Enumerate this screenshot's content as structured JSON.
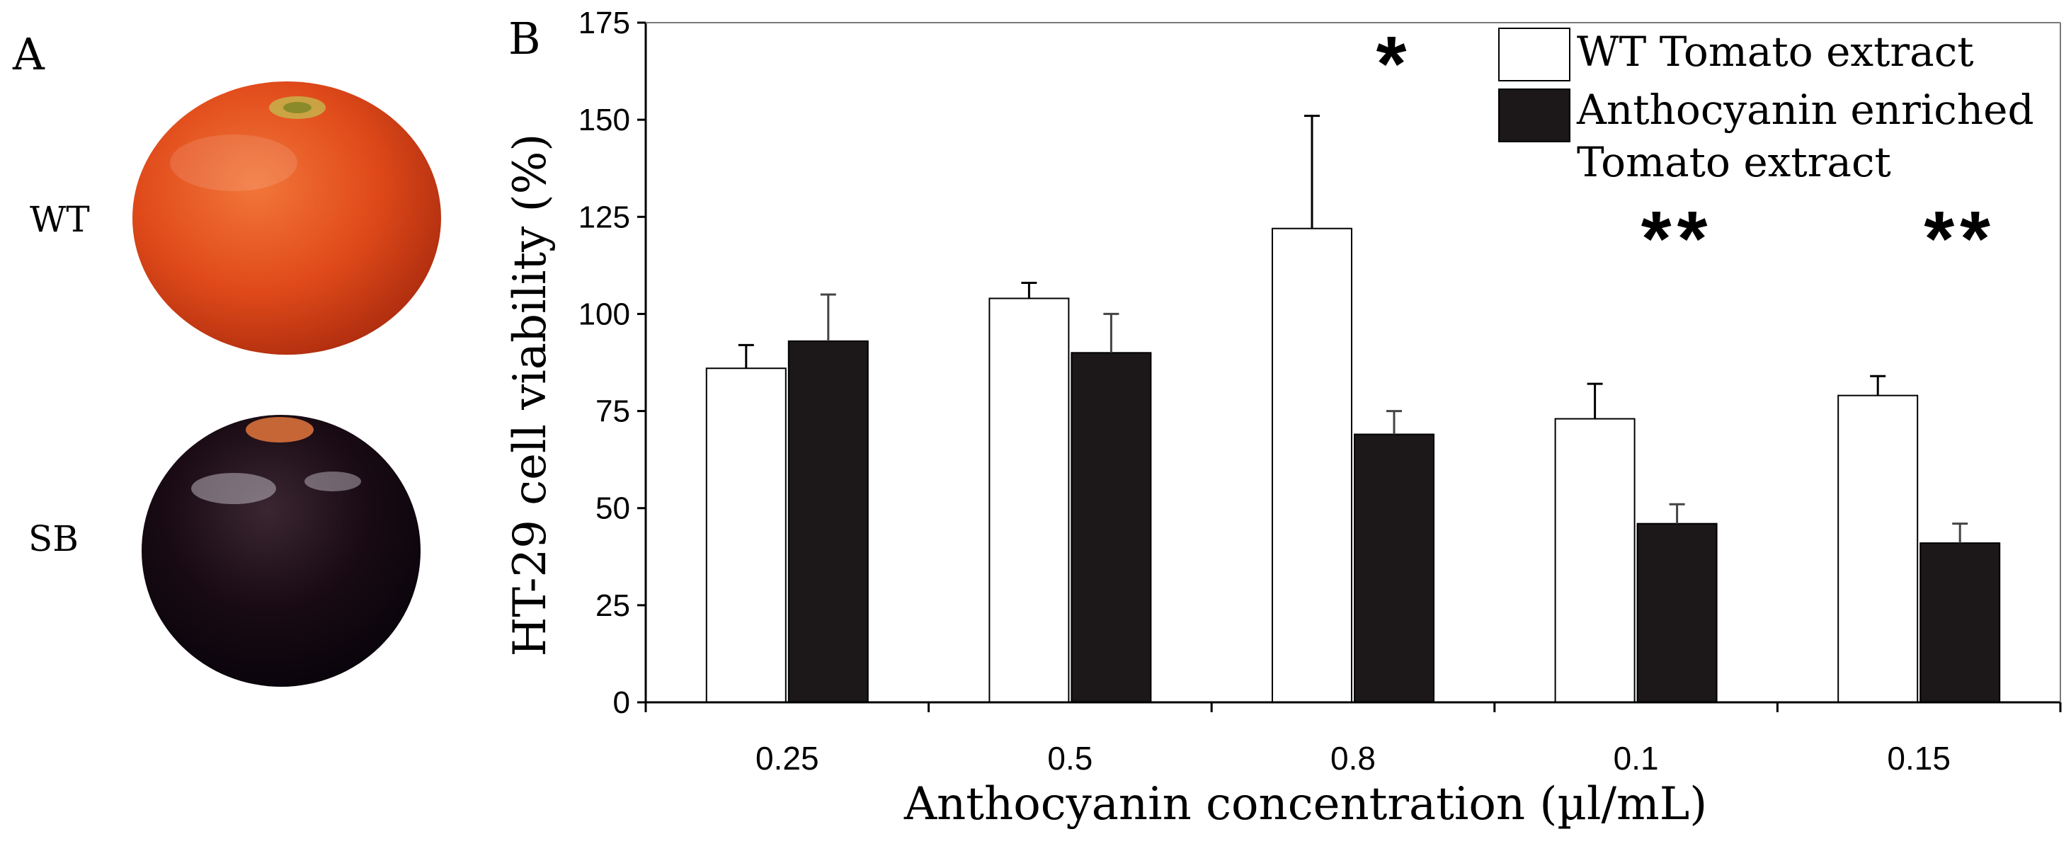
{
  "panel_a": {
    "label": "A",
    "tomatoes": [
      {
        "label": "WT",
        "color": "#e04a1a"
      },
      {
        "label": "SB",
        "color": "#1a0b14"
      }
    ]
  },
  "chart_data": {
    "panel_label": "B",
    "type": "bar",
    "title": "",
    "xlabel": "Anthocyanin concentration (µl/mL)",
    "ylabel": "HT-29 cell viability (%)",
    "ylim": [
      0,
      175
    ],
    "yticks": [
      0,
      25,
      50,
      75,
      100,
      125,
      150,
      175
    ],
    "categories": [
      "0.25",
      "0.5",
      "0.8",
      "0.1",
      "0.15"
    ],
    "series": [
      {
        "name": "WT Tomato extract",
        "fill": "#ffffff",
        "values": [
          86,
          104,
          122,
          73,
          79
        ],
        "errors": [
          6,
          4,
          29,
          9,
          5
        ]
      },
      {
        "name": "Anthocyanin enriched Tomato extract",
        "fill": "#1c1718",
        "values": [
          93,
          90,
          69,
          46,
          41
        ],
        "errors": [
          12,
          10,
          6,
          5,
          5
        ]
      }
    ],
    "significance": [
      "",
      "",
      "*",
      "**",
      "**"
    ],
    "legend": {
      "position": "top-right"
    }
  }
}
